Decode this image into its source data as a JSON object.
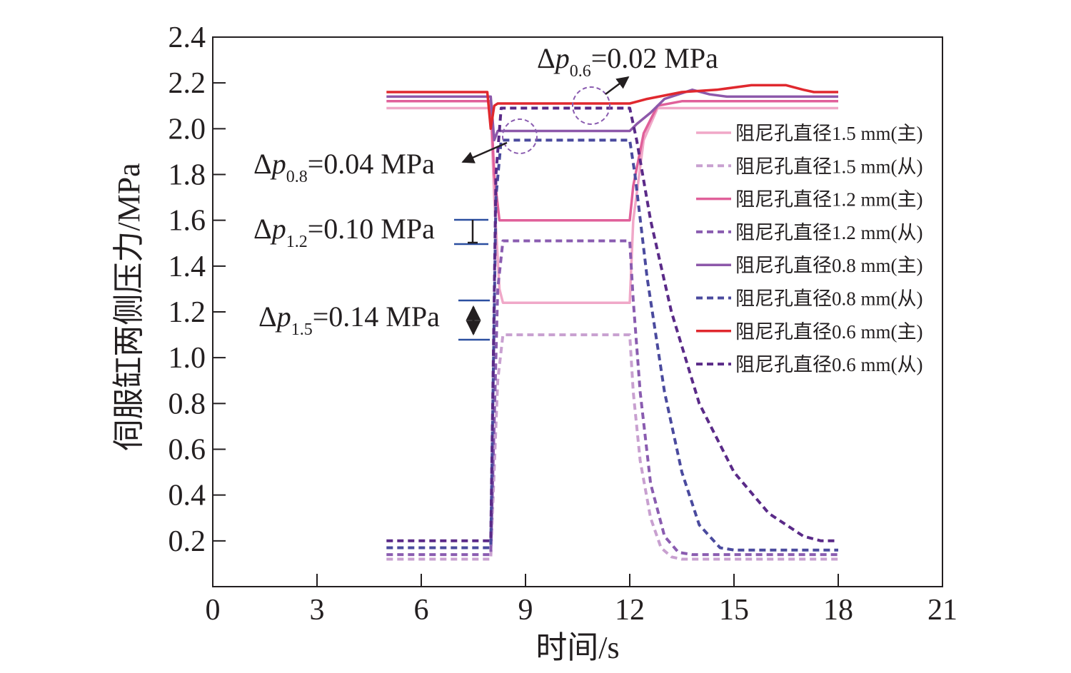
{
  "chart_data": {
    "type": "line",
    "xlabel": "时间/s",
    "ylabel": "伺服缸两侧压力/MPa",
    "xlim": [
      0,
      21
    ],
    "ylim": [
      0,
      2.4
    ],
    "xticks": [
      "0",
      "3",
      "6",
      "9",
      "12",
      "15",
      "18",
      "21"
    ],
    "xtick_values": [
      0,
      3,
      6,
      9,
      12,
      15,
      18,
      21
    ],
    "yticks": [
      "0.2",
      "0.4",
      "0.6",
      "0.8",
      "1.0",
      "1.2",
      "1.4",
      "1.6",
      "1.8",
      "2.0",
      "2.2",
      "2.4"
    ],
    "ytick_values": [
      0.2,
      0.4,
      0.6,
      0.8,
      1.0,
      1.2,
      1.4,
      1.6,
      1.8,
      2.0,
      2.2,
      2.4
    ],
    "grid": false,
    "legend_position": "right",
    "series": [
      {
        "name": "阻尼孔直径1.5 mm(主)",
        "color": "#f0a8c8",
        "dash": false,
        "x": [
          5,
          8,
          8.1,
          8.25,
          8.35,
          12,
          12.1,
          12.4,
          12.8,
          13.2,
          18
        ],
        "y": [
          2.09,
          2.09,
          1.7,
          1.3,
          1.24,
          1.24,
          1.6,
          1.95,
          2.09,
          2.09,
          2.09
        ]
      },
      {
        "name": "阻尼孔直径1.5 mm(从)",
        "color": "#c8a0d0",
        "dash": true,
        "x": [
          5,
          8,
          8.2,
          8.35,
          12,
          12.1,
          12.3,
          12.6,
          12.9,
          13.2,
          13.5,
          18
        ],
        "y": [
          0.12,
          0.12,
          0.9,
          1.1,
          1.1,
          0.85,
          0.55,
          0.3,
          0.17,
          0.13,
          0.12,
          0.12
        ]
      },
      {
        "name": "阻尼孔直径1.2 mm(主)",
        "color": "#e0609a",
        "dash": false,
        "x": [
          5,
          8,
          8.1,
          8.25,
          12,
          12.1,
          12.4,
          12.8,
          13.5,
          18
        ],
        "y": [
          2.12,
          2.12,
          1.8,
          1.6,
          1.6,
          1.75,
          1.98,
          2.1,
          2.12,
          2.12
        ]
      },
      {
        "name": "阻尼孔直径1.2 mm(从)",
        "color": "#8a5cb0",
        "dash": true,
        "x": [
          5,
          8,
          8.2,
          8.35,
          12,
          12.1,
          12.3,
          12.6,
          13.0,
          13.4,
          13.8,
          18
        ],
        "y": [
          0.14,
          0.14,
          1.3,
          1.51,
          1.51,
          1.25,
          0.85,
          0.45,
          0.22,
          0.15,
          0.14,
          0.14
        ]
      },
      {
        "name": "阻尼孔直径0.8 mm(主)",
        "color": "#8d58aa",
        "dash": false,
        "x": [
          5,
          8,
          8.1,
          8.2,
          12,
          12.2,
          12.6,
          13.0,
          13.8,
          14.3,
          14.8,
          18
        ],
        "y": [
          2.14,
          2.14,
          1.95,
          1.99,
          1.99,
          2.02,
          2.07,
          2.13,
          2.17,
          2.15,
          2.14,
          2.14
        ]
      },
      {
        "name": "阻尼孔直径0.8 mm(从)",
        "color": "#4a4a9e",
        "dash": true,
        "x": [
          5,
          8,
          8.15,
          8.3,
          12,
          12.15,
          12.5,
          13.0,
          13.5,
          14.0,
          14.6,
          15.0,
          18
        ],
        "y": [
          0.17,
          0.17,
          1.7,
          1.95,
          1.95,
          1.8,
          1.35,
          0.85,
          0.5,
          0.27,
          0.17,
          0.16,
          0.16
        ]
      },
      {
        "name": "阻尼孔直径0.6 mm(主)",
        "color": "#e0282e",
        "dash": false,
        "x": [
          5,
          7.9,
          8.0,
          8.1,
          8.2,
          8.4,
          12,
          12.5,
          13.5,
          14.5,
          15.5,
          16.5,
          17.0,
          17.3,
          18
        ],
        "y": [
          2.16,
          2.16,
          2.0,
          2.1,
          2.11,
          2.11,
          2.11,
          2.13,
          2.16,
          2.17,
          2.19,
          2.19,
          2.17,
          2.16,
          2.16
        ]
      },
      {
        "name": "阻尼孔直径0.6 mm(从)",
        "color": "#5a2a88",
        "dash": true,
        "x": [
          5,
          8,
          8.15,
          8.3,
          12,
          12.2,
          12.6,
          13.2,
          14.0,
          15.0,
          16.0,
          17.0,
          17.5,
          18
        ],
        "y": [
          0.2,
          0.2,
          1.8,
          2.09,
          2.09,
          1.95,
          1.6,
          1.2,
          0.8,
          0.5,
          0.32,
          0.22,
          0.2,
          0.2
        ]
      }
    ],
    "annotations": [
      {
        "id": "a06",
        "delta": "Δ",
        "var": "p",
        "sub": "0.6",
        "text": "=0.02 MPa"
      },
      {
        "id": "a08",
        "delta": "Δ",
        "var": "p",
        "sub": "0.8",
        "text": "=0.04 MPa"
      },
      {
        "id": "a12",
        "delta": "Δ",
        "var": "p",
        "sub": "1.2",
        "text": "=0.10 MPa"
      },
      {
        "id": "a15",
        "delta": "Δ",
        "var": "p",
        "sub": "1.5",
        "text": "=0.14 MPa"
      }
    ]
  }
}
